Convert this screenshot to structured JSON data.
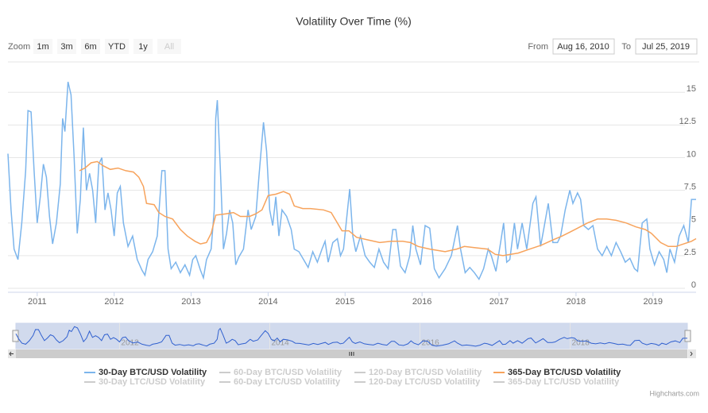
{
  "chart_data": {
    "type": "line",
    "title": "Volatility Over Time (%)",
    "range_selector": {
      "label": "Zoom",
      "buttons": [
        "1m",
        "3m",
        "6m",
        "YTD",
        "1y",
        "All"
      ],
      "disabled": [
        "All"
      ],
      "from_label": "From",
      "from": "Aug 16, 2010",
      "to_label": "To",
      "to": "Jul 25, 2019"
    },
    "xlim": [
      2010.62,
      2019.56
    ],
    "xticks": [
      2011,
      2012,
      2013,
      2014,
      2015,
      2016,
      2017,
      2018,
      2019
    ],
    "ylim": [
      0,
      17.2
    ],
    "yticks": [
      0,
      2.5,
      5,
      7.5,
      10,
      12.5,
      15
    ],
    "grid": true,
    "series": [
      {
        "name": "30-Day BTC/USD Volatility",
        "color": "#7cb5ec",
        "x": [
          2010.62,
          2010.66,
          2010.7,
          2010.75,
          2010.8,
          2010.85,
          2010.88,
          2010.92,
          2010.96,
          2011.0,
          2011.04,
          2011.08,
          2011.12,
          2011.16,
          2011.2,
          2011.25,
          2011.3,
          2011.33,
          2011.36,
          2011.4,
          2011.44,
          2011.48,
          2011.52,
          2011.56,
          2011.6,
          2011.64,
          2011.68,
          2011.72,
          2011.76,
          2011.8,
          2011.84,
          2011.88,
          2011.92,
          2011.96,
          2012.0,
          2012.04,
          2012.08,
          2012.12,
          2012.18,
          2012.24,
          2012.3,
          2012.36,
          2012.4,
          2012.44,
          2012.5,
          2012.56,
          2012.62,
          2012.66,
          2012.7,
          2012.74,
          2012.8,
          2012.86,
          2012.92,
          2012.98,
          2013.02,
          2013.06,
          2013.12,
          2013.16,
          2013.2,
          2013.26,
          2013.3,
          2013.32,
          2013.34,
          2013.38,
          2013.42,
          2013.46,
          2013.5,
          2013.54,
          2013.58,
          2013.62,
          2013.68,
          2013.74,
          2013.78,
          2013.84,
          2013.88,
          2013.94,
          2013.98,
          2014.02,
          2014.06,
          2014.1,
          2014.14,
          2014.18,
          2014.24,
          2014.3,
          2014.34,
          2014.4,
          2014.46,
          2014.52,
          2014.58,
          2014.64,
          2014.7,
          2014.74,
          2014.78,
          2014.84,
          2014.9,
          2014.94,
          2014.98,
          2015.04,
          2015.06,
          2015.1,
          2015.14,
          2015.2,
          2015.26,
          2015.32,
          2015.38,
          2015.44,
          2015.5,
          2015.56,
          2015.62,
          2015.66,
          2015.72,
          2015.78,
          2015.84,
          2015.88,
          2015.92,
          2015.98,
          2016.04,
          2016.1,
          2016.16,
          2016.22,
          2016.3,
          2016.38,
          2016.46,
          2016.5,
          2016.56,
          2016.62,
          2016.68,
          2016.74,
          2016.8,
          2016.86,
          2016.9,
          2016.96,
          2017.02,
          2017.06,
          2017.1,
          2017.14,
          2017.2,
          2017.24,
          2017.3,
          2017.36,
          2017.44,
          2017.48,
          2017.54,
          2017.58,
          2017.64,
          2017.7,
          2017.76,
          2017.8,
          2017.86,
          2017.92,
          2017.96,
          2018.02,
          2018.06,
          2018.1,
          2018.16,
          2018.22,
          2018.28,
          2018.34,
          2018.4,
          2018.46,
          2018.52,
          2018.58,
          2018.64,
          2018.7,
          2018.76,
          2018.8,
          2018.86,
          2018.92,
          2018.96,
          2019.02,
          2019.08,
          2019.14,
          2019.18,
          2019.22,
          2019.28,
          2019.34,
          2019.4,
          2019.46,
          2019.5,
          2019.56
        ],
        "values": [
          10.3,
          6,
          3,
          2.2,
          5,
          9,
          13.6,
          13.5,
          9,
          5,
          7,
          9.5,
          8.5,
          5.5,
          3.4,
          5,
          8,
          13,
          12,
          15.8,
          14.8,
          10,
          4.2,
          6.8,
          12.3,
          7.5,
          8.8,
          7.5,
          5,
          9.5,
          10,
          6,
          7.3,
          6,
          4,
          7.3,
          7.8,
          5,
          3.2,
          4,
          2.2,
          1.4,
          1,
          2.2,
          2.8,
          4,
          9,
          9,
          3,
          1.5,
          2,
          1.2,
          1.8,
          1,
          2.2,
          2.5,
          1.4,
          0.8,
          2.2,
          3,
          6,
          13,
          14.4,
          9,
          3,
          4.2,
          6,
          5,
          1.8,
          2.4,
          3,
          6,
          4.5,
          5.5,
          8.5,
          12.7,
          10.5,
          6,
          4.8,
          7,
          4,
          6,
          5.5,
          4.5,
          3,
          2.8,
          2.2,
          1.6,
          2.8,
          2,
          3,
          3.6,
          2,
          3.5,
          3.8,
          2.5,
          3,
          6.5,
          7.6,
          4,
          2.8,
          4,
          2.5,
          2,
          1.6,
          3,
          2,
          1.5,
          4.5,
          4.5,
          1.7,
          1.2,
          2.5,
          4.8,
          3,
          1.8,
          4.8,
          4.6,
          1.5,
          0.8,
          1.5,
          2.5,
          4.8,
          3,
          1.2,
          1.6,
          1.2,
          0.7,
          1.5,
          3,
          2.5,
          1.3,
          3.5,
          5,
          2,
          2.2,
          5,
          3,
          5,
          3,
          6.5,
          7,
          3.2,
          4.5,
          6.5,
          3.5,
          3.5,
          4,
          6,
          7.5,
          6.5,
          7.3,
          6.8,
          4.8,
          4.5,
          4.8,
          3,
          2.5,
          3.2,
          2.5,
          3.5,
          2.8,
          2,
          2.3,
          1.5,
          1.3,
          5,
          5.3,
          3,
          1.8,
          2.8,
          2.2,
          1.2,
          3,
          2,
          4,
          4.8,
          3.5,
          6.8,
          6.8
        ]
      },
      {
        "name": "365-Day BTC/USD Volatility",
        "color": "#f7a35c",
        "x": [
          2011.55,
          2011.62,
          2011.7,
          2011.78,
          2011.85,
          2011.95,
          2012.05,
          2012.15,
          2012.25,
          2012.32,
          2012.38,
          2012.42,
          2012.52,
          2012.58,
          2012.66,
          2012.76,
          2012.86,
          2012.95,
          2013.05,
          2013.12,
          2013.2,
          2013.26,
          2013.32,
          2013.45,
          2013.55,
          2013.64,
          2013.76,
          2013.84,
          2013.92,
          2014.0,
          2014.1,
          2014.2,
          2014.28,
          2014.34,
          2014.45,
          2014.55,
          2014.72,
          2014.82,
          2014.9,
          2014.96,
          2015.05,
          2015.15,
          2015.3,
          2015.45,
          2015.6,
          2015.75,
          2015.85,
          2015.95,
          2016.1,
          2016.3,
          2016.45,
          2016.55,
          2016.7,
          2016.85,
          2016.95,
          2017.05,
          2017.15,
          2017.25,
          2017.4,
          2017.55,
          2017.7,
          2017.82,
          2017.92,
          2018.02,
          2018.15,
          2018.28,
          2018.4,
          2018.52,
          2018.65,
          2018.78,
          2018.9,
          2018.98,
          2019.1,
          2019.2,
          2019.3,
          2019.4,
          2019.5,
          2019.56
        ],
        "values": [
          9,
          9.2,
          9.6,
          9.7,
          9.4,
          9.1,
          9.2,
          9,
          8.9,
          8.5,
          7.8,
          6.5,
          6.4,
          5.8,
          5.5,
          5.3,
          4.5,
          4,
          3.6,
          3.4,
          3.5,
          4.2,
          5.6,
          5.7,
          5.8,
          5.5,
          5.5,
          5.7,
          6,
          7.1,
          7.2,
          7.4,
          7.2,
          6.3,
          6.1,
          6.1,
          6,
          5.8,
          5,
          4.4,
          4.4,
          3.9,
          3.7,
          3.5,
          3.6,
          3.6,
          3.5,
          3.2,
          3,
          2.8,
          3,
          3.2,
          3.1,
          3,
          2.6,
          2.5,
          2.6,
          2.7,
          3,
          3.3,
          3.7,
          4,
          4.3,
          4.6,
          5,
          5.3,
          5.3,
          5.2,
          5,
          4.7,
          4.5,
          4.2,
          3.5,
          3.2,
          3.2,
          3.4,
          3.6,
          3.8
        ]
      }
    ],
    "hidden_series": [
      "60-Day BTC/USD Volatility",
      "120-Day BTC/USD Volatility",
      "30-Day LTC/USD Volatility",
      "60-Day LTC/USD Volatility",
      "120-Day LTC/USD Volatility",
      "365-Day LTC/USD Volatility"
    ],
    "navigator": {
      "xticks": [
        2012,
        2014,
        2016,
        2018
      ]
    },
    "credits": "Highcharts.com"
  }
}
